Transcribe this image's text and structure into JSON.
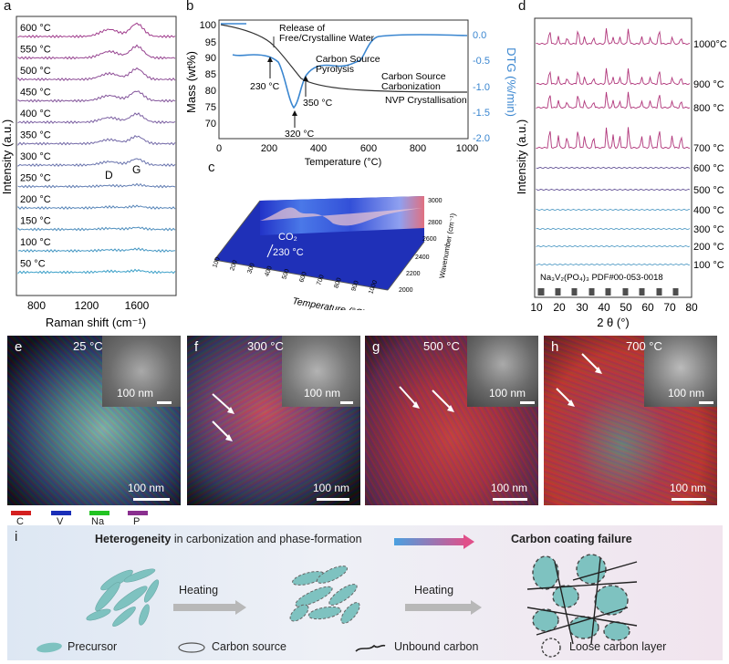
{
  "labels": {
    "a": "a",
    "b": "b",
    "c": "c",
    "d": "d",
    "e": "e",
    "f": "f",
    "g": "g",
    "h": "h",
    "i": "i"
  },
  "panel_a": {
    "ylabel": "Intensity (a.u.)",
    "xlabel": "Raman shift (cm⁻¹)",
    "xticks": [
      "800",
      "1200",
      "1600"
    ],
    "peak_d": "D",
    "peak_g": "G",
    "temps": [
      "600 °C",
      "550 °C",
      "500 °C",
      "450 °C",
      "400 °C",
      "350 °C",
      "300 °C",
      "250 °C",
      "200 °C",
      "150 °C",
      "100 °C",
      "50 °C"
    ]
  },
  "panel_b": {
    "ylabel_left": "Mass (wt%)",
    "ylabel_right": "DTG (%/min)",
    "xlabel": "Temperature (°C)",
    "xticks": [
      "0",
      "200",
      "400",
      "600",
      "800",
      "1000"
    ],
    "yticks_left": [
      "100",
      "95",
      "90",
      "85",
      "80",
      "75",
      "70"
    ],
    "yticks_right": [
      "0.0",
      "-0.5",
      "-1.0",
      "-1.5",
      "-2.0"
    ],
    "ann_release_1": "Release of",
    "ann_release_2": "Free/Crystalline Water",
    "ann_pyro_1": "Carbon Source",
    "ann_pyro_2": "Pyrolysis",
    "ann_carb_1": "Carbon Source",
    "ann_carb_2": "Carbonization",
    "ann_nvp": "NVP Crystallisation",
    "ann_230": "230 °C",
    "ann_350": "350 °C",
    "ann_320": "320 °C"
  },
  "panel_c": {
    "co2": "CO₂",
    "t230": "230 °C",
    "xlabel": "Temperature (°C)",
    "ylabel": "Wavenumber (cm⁻¹)",
    "xticks": [
      "100",
      "200",
      "300",
      "400",
      "500",
      "600",
      "700",
      "800",
      "900",
      "1000"
    ],
    "yticks": [
      "3000",
      "2800",
      "2600",
      "2400",
      "2200",
      "2000"
    ]
  },
  "panel_d": {
    "ylabel": "Intensity (a.u.)",
    "xlabel": "2 θ (°)",
    "xticks": [
      "10",
      "20",
      "30",
      "40",
      "50",
      "60",
      "70",
      "80"
    ],
    "temps": [
      "1000°C",
      "900 °C",
      "800 °C",
      "700 °C",
      "600 °C",
      "500 °C",
      "400 °C",
      "300 °C",
      "200 °C",
      "100 °C"
    ],
    "ref": "Na₃V₂(PO₄)₃ PDF#00-053-0018"
  },
  "em": {
    "e_temp": "25 °C",
    "f_temp": "300 °C",
    "g_temp": "500 °C",
    "h_temp": "700 °C",
    "scale": "100 nm"
  },
  "elements": [
    {
      "name": "C",
      "color": "#d42020"
    },
    {
      "name": "V",
      "color": "#1a2fb8"
    },
    {
      "name": "Na",
      "color": "#22c322"
    },
    {
      "name": "P",
      "color": "#8a2f8f"
    }
  ],
  "panel_i": {
    "title_bold": "Heterogeneity",
    "title_rest": " in carbonization and phase-formation",
    "failure": "Carbon coating failure",
    "heating1": "Heating",
    "heating2": "Heating",
    "leg_precursor": "Precursor",
    "leg_carbon": "Carbon source",
    "leg_unbound": "Unbound carbon",
    "leg_loose": "Loose carbon layer"
  }
}
